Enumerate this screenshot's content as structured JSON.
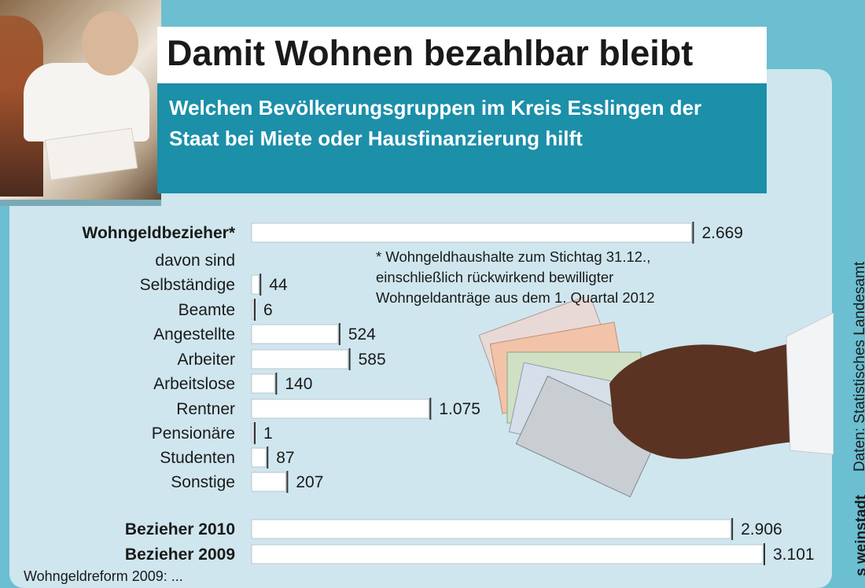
{
  "header": {
    "title": "Damit Wohnen bezahlbar bleibt",
    "subtitle": "Welchen Bevölkerungsgruppen im Kreis Esslingen der Staat bei Miete oder Hausfinanzierung hilft"
  },
  "note": "* Wohngeldhaushalte zum Stichtag 31.12.,\neinschließlich rückwirkend bewilligter\nWohngeldanträge aus dem 1. Quartal 2012",
  "source": "Daten: Statistisches Landesamt",
  "logo_text": "s weinstadt",
  "footnote": "Wohngeldreform 2009: ...",
  "colors": {
    "bar": "#ffffff",
    "bar_shadow": "#8fa3aa",
    "text": "#1a1a1a",
    "panel": "#cfe6ee",
    "background": "#6bbfd1",
    "accent": "#1c8fa9"
  },
  "chart_data": {
    "type": "bar",
    "orientation": "horizontal",
    "categories": [
      "Wohngeldbezieher*",
      "davon sind",
      "Selbständige",
      "Beamte",
      "Angestellte",
      "Arbeiter",
      "Arbeitslose",
      "Rentner",
      "Pensionäre",
      "Studenten",
      "Sonstige",
      "Bezieher 2010",
      "Bezieher 2009"
    ],
    "values": [
      2669,
      null,
      44,
      6,
      524,
      585,
      140,
      1075,
      1,
      87,
      207,
      2906,
      3101
    ],
    "value_labels": [
      "2.669",
      "",
      "44",
      "6",
      "524",
      "585",
      "140",
      "1.075",
      "1",
      "87",
      "207",
      "2.906",
      "3.101"
    ],
    "bold": [
      true,
      false,
      false,
      false,
      false,
      false,
      false,
      false,
      false,
      false,
      false,
      true,
      true
    ],
    "xlim": [
      0,
      3101
    ]
  }
}
